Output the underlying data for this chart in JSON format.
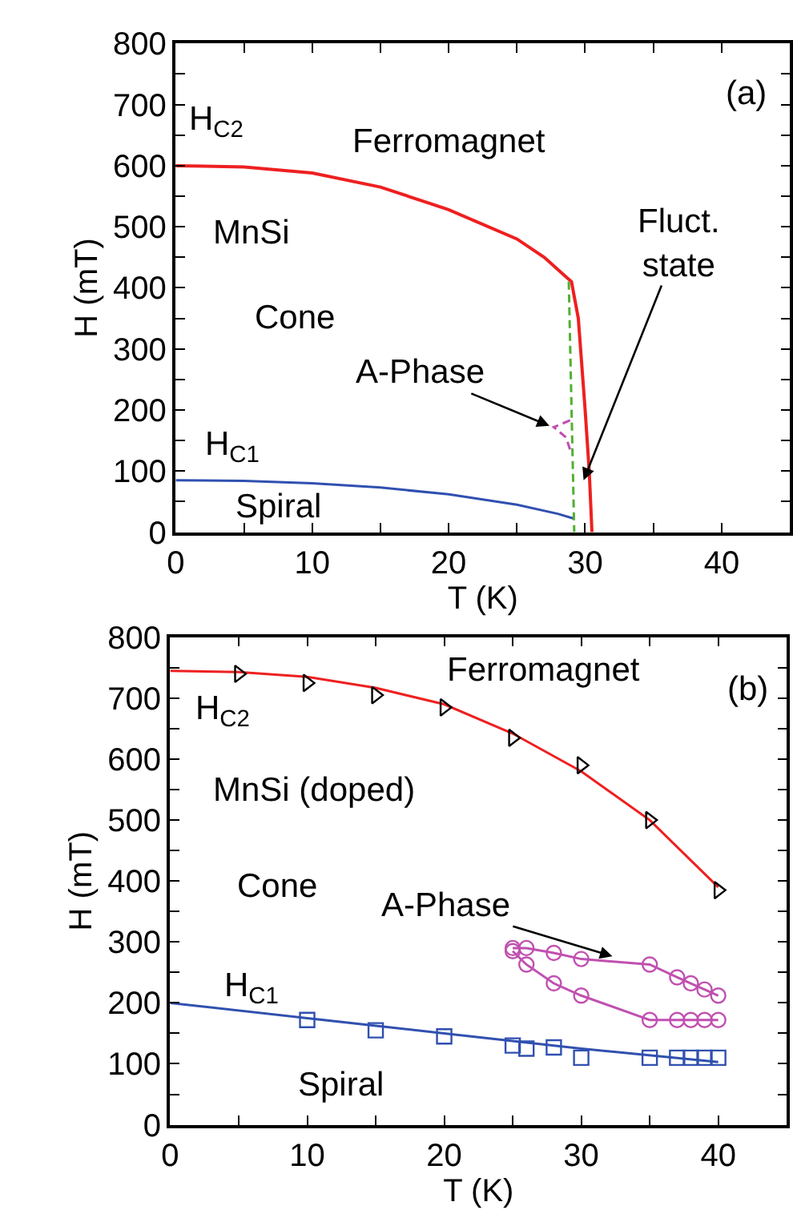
{
  "chart_data": [
    {
      "type": "line",
      "xlabel": "T (K)",
      "ylabel": "H (mT)",
      "xlim": [
        0,
        45
      ],
      "ylim": [
        0,
        800
      ],
      "xticks": [
        0,
        {
          "value": 5,
          "label": null
        },
        10,
        {
          "value": 15,
          "label": null
        },
        20,
        {
          "value": 25,
          "label": null
        },
        30,
        {
          "value": 35,
          "label": null
        },
        40,
        {
          "value": 45,
          "label": null
        }
      ],
      "yticks": [
        0,
        {
          "value": 50,
          "label": null
        },
        100,
        {
          "value": 150,
          "label": null
        },
        200,
        {
          "value": 250,
          "label": null
        },
        300,
        {
          "value": 350,
          "label": null
        },
        400,
        {
          "value": 450,
          "label": null
        },
        500,
        {
          "value": 550,
          "label": null
        },
        600,
        {
          "value": 650,
          "label": null
        },
        700,
        {
          "value": 750,
          "label": null
        },
        800
      ],
      "series": [
        {
          "color": "#ee2020",
          "marker": "none",
          "line_style": "solid",
          "x": [
            0,
            5,
            10,
            15,
            20,
            25,
            27,
            28.5,
            29,
            29.5,
            30,
            30.3,
            30.5
          ],
          "values": [
            600,
            598,
            588,
            565,
            528,
            480,
            450,
            420,
            410,
            350,
            200,
            100,
            0
          ]
        },
        {
          "color": "#3050b0",
          "marker": "none",
          "line_style": "solid",
          "x": [
            0,
            5,
            10,
            15,
            20,
            25,
            28,
            29.2
          ],
          "values": [
            85,
            84,
            80,
            73,
            62,
            45,
            30,
            22
          ]
        },
        {
          "color": "#50b030",
          "marker": "none",
          "line_style": "dashed",
          "x": [
            28.8,
            29.2
          ],
          "values": [
            410,
            0
          ]
        },
        {
          "color": "#c050b0",
          "marker": "none",
          "line_style": "dashed",
          "x": [
            28.9,
            27.7,
            28.6,
            29
          ],
          "values": [
            183,
            172,
            155,
            128
          ]
        }
      ],
      "annotations": [
        "H$_{C2}$",
        "Ferromagnet",
        "MnSi",
        "Cone",
        {
          "text": "A-Phase",
          "x": 27.6,
          "y": 172
        },
        {
          "text": "Fluct.\nstate",
          "x": 29.8,
          "y": 80
        },
        "H$_{C1}$",
        "Spiral",
        "(a)"
      ]
    },
    {
      "type": "line",
      "xlabel": "T (K)",
      "ylabel": "H (mT)",
      "xlim": [
        0,
        45
      ],
      "ylim": [
        0,
        800
      ],
      "xticks": [
        0,
        {
          "value": 5,
          "label": null
        },
        10,
        {
          "value": 15,
          "label": null
        },
        20,
        {
          "value": 25,
          "label": null
        },
        30,
        {
          "value": 35,
          "label": null
        },
        40,
        {
          "value": 45,
          "label": null
        }
      ],
      "yticks": [
        0,
        {
          "value": 50,
          "label": null
        },
        100,
        {
          "value": 150,
          "label": null
        },
        200,
        {
          "value": 250,
          "label": null
        },
        300,
        {
          "value": 350,
          "label": null
        },
        400,
        {
          "value": 450,
          "label": null
        },
        500,
        {
          "value": 550,
          "label": null
        },
        600,
        {
          "value": 650,
          "label": null
        },
        700,
        {
          "value": 750,
          "label": null
        },
        800
      ],
      "series": [
        {
          "color": "#ee2020",
          "marker": "none",
          "line_style": "solid",
          "x": [
            0,
            5,
            10,
            15,
            20,
            25,
            30,
            35,
            40
          ],
          "values": [
            745,
            743,
            735,
            717,
            690,
            642,
            580,
            500,
            390
          ]
        },
        {
          "type": "scatter",
          "color": "#000000",
          "marker": "triangle",
          "x": [
            5,
            10,
            15,
            20,
            25,
            30,
            35,
            40
          ],
          "values": [
            740,
            725,
            705,
            685,
            635,
            590,
            500,
            385
          ]
        },
        {
          "color": "#3050b0",
          "marker": "none",
          "line_style": "solid",
          "x": [
            0,
            10,
            20,
            30,
            40
          ],
          "values": [
            200,
            175,
            150,
            125,
            103
          ]
        },
        {
          "type": "scatter",
          "color": "#3050b0",
          "marker": "square",
          "x": [
            10,
            15,
            20,
            25,
            26,
            28,
            30,
            35,
            37,
            38,
            39,
            40
          ],
          "values": [
            172,
            155,
            145,
            130,
            125,
            127,
            110,
            110,
            110,
            110,
            110,
            110
          ]
        },
        {
          "color": "#c050b0",
          "marker": "circle",
          "line_style": "solid",
          "x": [
            25,
            26,
            28,
            30,
            35,
            37,
            38,
            39,
            40
          ],
          "values": [
            290,
            290,
            282,
            272,
            263,
            242,
            232,
            222,
            212
          ]
        },
        {
          "color": "#c050b0",
          "marker": "circle",
          "line_style": "solid",
          "x": [
            25,
            26,
            28,
            30,
            35,
            37,
            38,
            39,
            40
          ],
          "values": [
            285,
            263,
            232,
            212,
            172,
            172,
            172,
            172,
            172
          ]
        }
      ],
      "annotations": [
        "H$_{C2}$",
        "Ferromagnet",
        "MnSi (doped)",
        "Cone",
        {
          "text": "A-Phase",
          "x": 32.5,
          "y": 275
        },
        "H$_{C1}$",
        "Spiral",
        "(b)"
      ]
    }
  ]
}
